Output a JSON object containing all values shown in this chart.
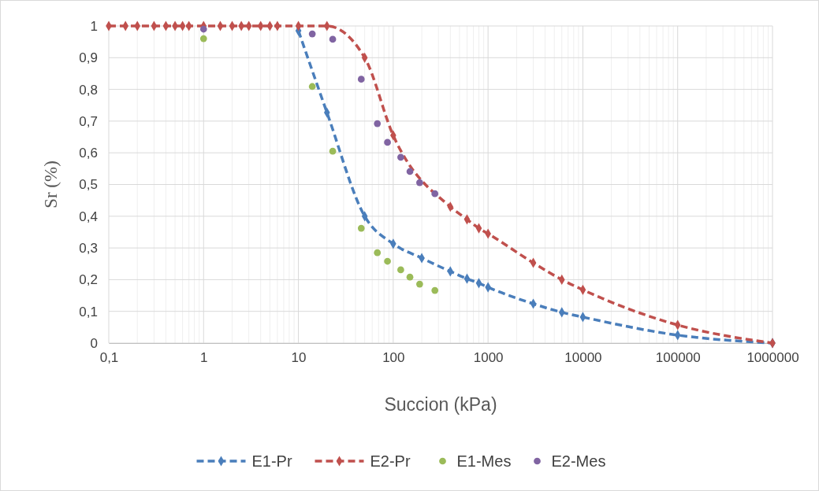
{
  "chart_data": {
    "type": "line",
    "xlabel": "Succion (kPa)",
    "ylabel": "Sr (%)",
    "log": "x",
    "xlim": [
      0.1,
      1000000
    ],
    "xticks": [
      {
        "value": 0.1,
        "label": "0,1"
      },
      1,
      10,
      100,
      1000,
      10000,
      100000,
      1000000
    ],
    "ylim": [
      0,
      1
    ],
    "yticks": [
      0,
      {
        "value": 0.1,
        "label": "0,1"
      },
      {
        "value": 0.2,
        "label": "0,2"
      },
      {
        "value": 0.3,
        "label": "0,3"
      },
      {
        "value": 0.4,
        "label": "0,4"
      },
      {
        "value": 0.5,
        "label": "0,5"
      },
      {
        "value": 0.6,
        "label": "0,6"
      },
      {
        "value": 0.7,
        "label": "0,7"
      },
      {
        "value": 0.8,
        "label": "0,8"
      },
      {
        "value": 0.9,
        "label": "0,9"
      },
      1
    ],
    "grid": true,
    "legend": "bottom",
    "line_style": "dashed",
    "series": [
      {
        "name": "E1-Pr",
        "type": "line",
        "marker": "diamond",
        "color": "#4a7ebb",
        "x": [
          10,
          20,
          50,
          100,
          200,
          400,
          600,
          800,
          1000,
          3000,
          6000,
          10000,
          100000,
          1000000
        ],
        "values": [
          0.985,
          0.727,
          0.4,
          0.313,
          0.268,
          0.226,
          0.203,
          0.189,
          0.176,
          0.124,
          0.097,
          0.082,
          0.025,
          0
        ]
      },
      {
        "name": "E2-Pr",
        "type": "line",
        "marker": "diamond",
        "color": "#c0504d",
        "x": [
          0.1,
          0.15,
          0.2,
          0.3,
          0.4,
          0.5,
          0.6,
          0.7,
          1,
          1.5,
          2,
          2.5,
          3,
          4,
          5,
          6,
          10,
          20,
          50,
          100,
          400,
          600,
          800,
          1000,
          3000,
          6000,
          10000,
          100000,
          1000000
        ],
        "values": [
          1,
          1,
          1,
          1,
          1,
          1,
          1,
          1,
          1,
          1,
          1,
          1,
          1,
          1,
          1,
          1,
          1,
          1,
          0.9,
          0.655,
          0.43,
          0.39,
          0.362,
          0.345,
          0.253,
          0.2,
          0.168,
          0.057,
          0
        ]
      },
      {
        "name": "E1-Mes",
        "type": "scatter",
        "marker": "circle",
        "color": "#9bbb59",
        "x": [
          1,
          14,
          23,
          46,
          68,
          87,
          120,
          150,
          190,
          275
        ],
        "values": [
          0.96,
          0.809,
          0.605,
          0.362,
          0.285,
          0.258,
          0.231,
          0.208,
          0.186,
          0.166
        ]
      },
      {
        "name": "E2-Mes",
        "type": "scatter",
        "marker": "circle",
        "color": "#8064a2",
        "x": [
          1,
          14,
          23,
          46,
          68,
          87,
          120,
          150,
          190,
          275
        ],
        "values": [
          0.99,
          0.975,
          0.958,
          0.832,
          0.692,
          0.633,
          0.586,
          0.541,
          0.506,
          0.471
        ]
      }
    ]
  }
}
